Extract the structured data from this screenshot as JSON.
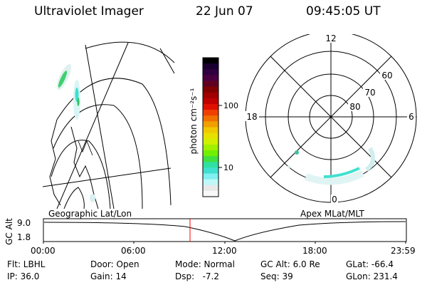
{
  "header": {
    "instrument": "Ultraviolet Imager",
    "date": "22 Jun 07",
    "time": "09:45:05 UT"
  },
  "colorbar": {
    "unit_label": "photon cm⁻²s⁻¹",
    "ticks": [
      "100",
      "10"
    ],
    "colors": [
      "#000000",
      "#1a0030",
      "#300040",
      "#4a0040",
      "#600020",
      "#800000",
      "#a00000",
      "#c00000",
      "#e01000",
      "#f04000",
      "#f07000",
      "#f0a000",
      "#f0c800",
      "#e8e000",
      "#d0f000",
      "#a0f000",
      "#70f000",
      "#40e040",
      "#30e0a0",
      "#40e0d0",
      "#80f0f0",
      "#c0f8f8",
      "#e8e8e8",
      "#f8f8f8"
    ]
  },
  "left_map": {
    "caption": "Geographic Lat/Lon"
  },
  "polar_plot": {
    "caption": "Apex MLat/MLT",
    "mlt_labels": {
      "top": "12",
      "bottom": "0",
      "left": "18",
      "right": "6"
    },
    "lat_labels": [
      "60",
      "70",
      "80"
    ]
  },
  "altitude_strip": {
    "ylabel": "GC Alt",
    "yticks": [
      "9.0",
      "1.8"
    ],
    "xticks": [
      "00:00",
      "06:00",
      "12:00",
      "18:00",
      "23:59"
    ],
    "marker_color": "#ff0000"
  },
  "status": {
    "flt": "Flt: LBHL",
    "door": "Door: Open",
    "mode": "Mode: Normal",
    "gc_alt": "GC Alt: 6.0 Re",
    "glat": "GLat: -66.4",
    "ip": "IP: 36.0",
    "gain": "Gain: 14",
    "dsp": "Dsp:   -7.2",
    "seq": "Seq: 39",
    "glon": "GLon: 231.4"
  }
}
